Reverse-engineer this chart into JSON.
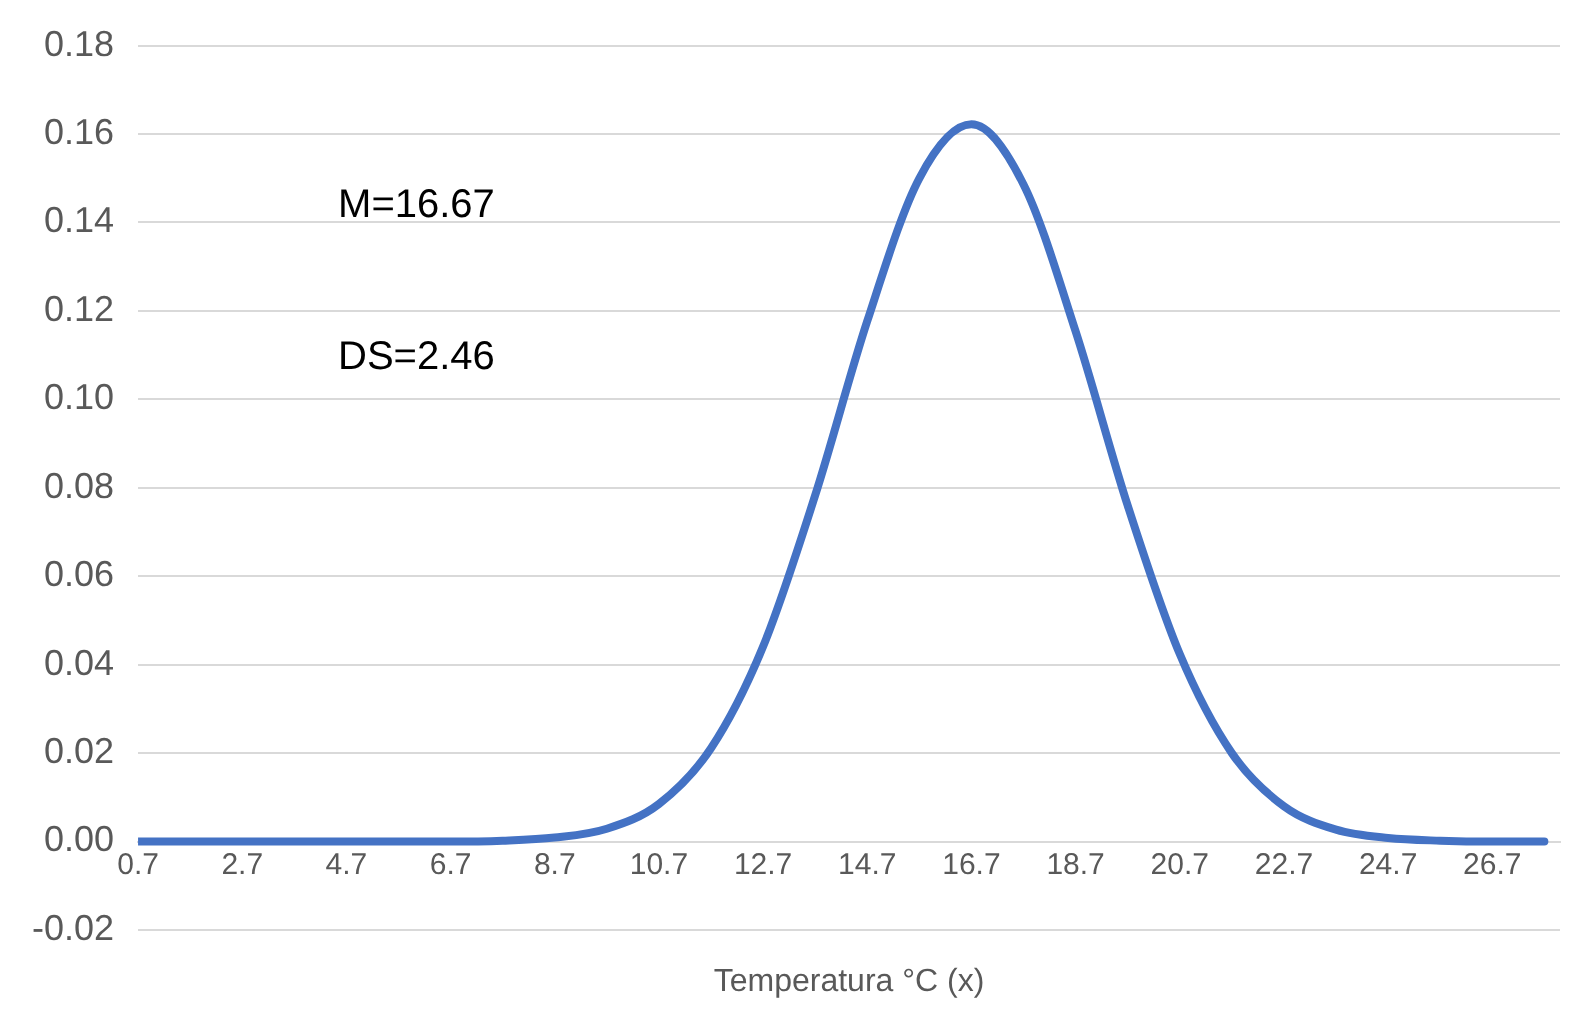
{
  "chart_data": {
    "type": "line",
    "xlabel": "Temperatura °C (x)",
    "x": [
      0.7,
      1.7,
      2.7,
      3.7,
      4.7,
      5.7,
      6.7,
      7.7,
      8.7,
      9.7,
      10.7,
      11.7,
      12.7,
      13.7,
      14.7,
      15.7,
      16.7,
      17.7,
      18.7,
      19.7,
      20.7,
      21.7,
      22.7,
      23.7,
      24.7,
      25.7,
      26.7,
      27.7
    ],
    "series": [
      {
        "color": "#4472c4",
        "values": [
          0,
          0,
          0,
          0,
          0,
          0,
          0,
          0.0002,
          0.0009,
          0.0029,
          0.0085,
          0.0211,
          0.0441,
          0.0783,
          0.1177,
          0.15,
          0.1622,
          0.1486,
          0.1154,
          0.076,
          0.0424,
          0.02,
          0.008,
          0.0027,
          0.0008,
          0.0002,
          0,
          0
        ]
      }
    ],
    "xlim": [
      0.7,
      28.0
    ],
    "xticks": [
      0.7,
      2.7,
      4.7,
      6.7,
      8.7,
      10.7,
      12.7,
      14.7,
      16.7,
      18.7,
      20.7,
      22.7,
      24.7,
      26.7
    ],
    "ylim": [
      -0.02,
      0.18
    ],
    "yticks": [
      {
        "value": -0.02,
        "label": "-0.02"
      },
      {
        "value": 0,
        "label": "0.00"
      },
      {
        "value": 0.02,
        "label": "0.02"
      },
      {
        "value": 0.04,
        "label": "0.04"
      },
      {
        "value": 0.06,
        "label": "0.06"
      },
      {
        "value": 0.08,
        "label": "0.08"
      },
      {
        "value": 0.1,
        "label": "0.10"
      },
      {
        "value": 0.12,
        "label": "0.12"
      },
      {
        "value": 0.14,
        "label": "0.14"
      },
      {
        "value": 0.16,
        "label": "0.16"
      },
      {
        "value": 0.18,
        "label": "0.18"
      }
    ],
    "annotations": [
      "M=16.67",
      "DS=2.46"
    ],
    "grid": "y",
    "legend": false,
    "marker": "none",
    "line_style": "solid"
  }
}
